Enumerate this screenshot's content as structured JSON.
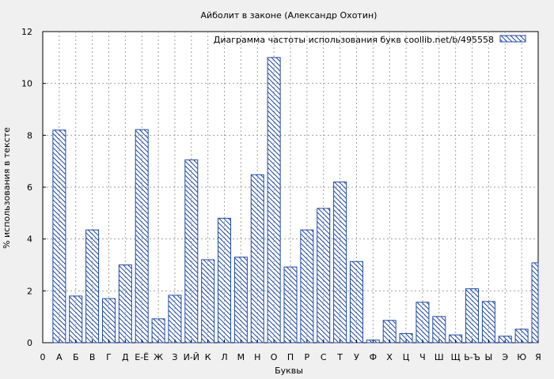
{
  "chart_data": {
    "type": "bar",
    "title": "Айболит в законе (Александр Охотин)",
    "xlabel": "Буквы",
    "ylabel": "% использования в тексте",
    "legend": "Диаграмма частоты использования букв  coollib.net/b/495558",
    "legend_position": "top-right",
    "ylim": [
      0,
      12
    ],
    "yticks": [
      0,
      2,
      4,
      6,
      8,
      10,
      12
    ],
    "grid": true,
    "categories": [
      "0",
      "А",
      "Б",
      "В",
      "Г",
      "Д",
      "Е-Ё",
      "Ж",
      "З",
      "И-Й",
      "К",
      "Л",
      "М",
      "Н",
      "О",
      "П",
      "Р",
      "С",
      "Т",
      "У",
      "Ф",
      "Х",
      "Ц",
      "Ч",
      "Ш",
      "Щ",
      "Ь-Ъ",
      "Ы",
      "Э",
      "Ю",
      "Я"
    ],
    "values": [
      0,
      8.2,
      1.8,
      4.35,
      1.7,
      3.0,
      8.22,
      0.92,
      1.83,
      7.05,
      3.2,
      4.8,
      3.3,
      6.48,
      11.0,
      2.92,
      4.35,
      5.18,
      6.2,
      3.13,
      0.1,
      0.86,
      0.35,
      1.56,
      1.01,
      0.3,
      2.08,
      1.59,
      0.25,
      0.52,
      3.08
    ],
    "colors": {
      "bar_stroke": "#1f4aa8",
      "background": "#f0f0f0",
      "plot_bg": "#ffffff",
      "grid": "#a0a0a0"
    }
  }
}
